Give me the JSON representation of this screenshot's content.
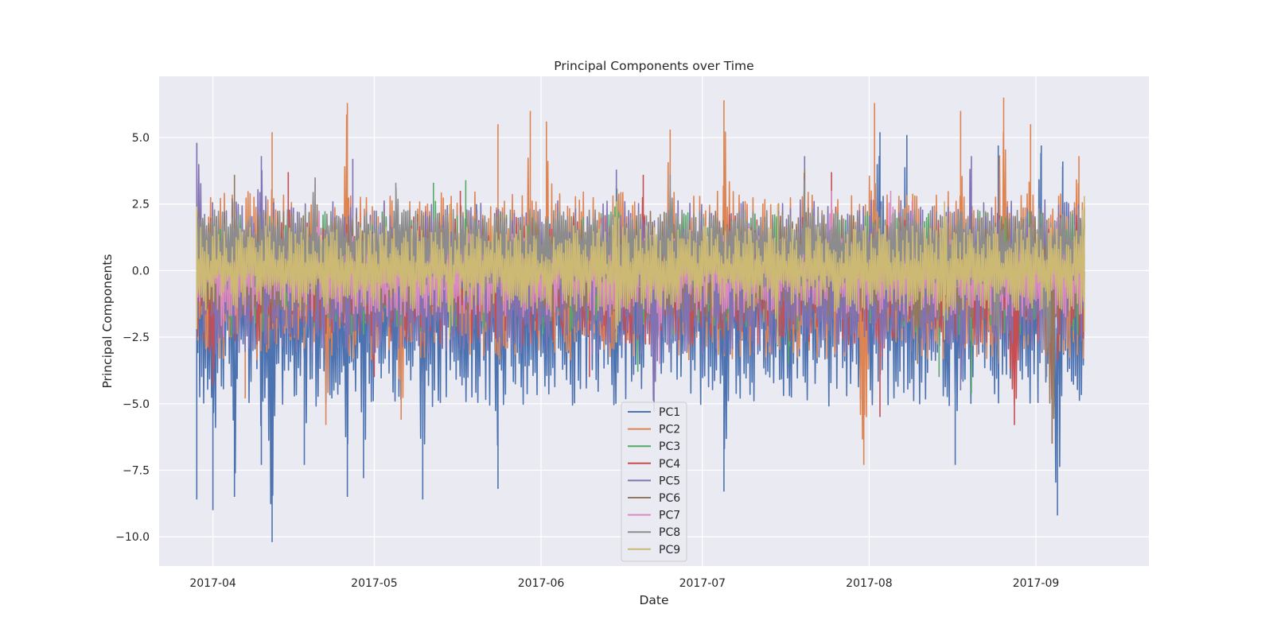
{
  "chart_data": {
    "type": "line",
    "title": "Principal Components over Time",
    "xlabel": "Date",
    "ylabel": "Principal Components",
    "xlim": [
      "2017-03-22",
      "2017-09-22"
    ],
    "ylim": [
      -11.1,
      7.3
    ],
    "grid": true,
    "legend_position": "lower center",
    "x_ticks": [
      "2017-04",
      "2017-05",
      "2017-06",
      "2017-07",
      "2017-08",
      "2017-09"
    ],
    "x_tick_dates": [
      "2017-04-01",
      "2017-05-01",
      "2017-06-01",
      "2017-07-01",
      "2017-08-01",
      "2017-09-01"
    ],
    "y_ticks": [
      5.0,
      2.5,
      0.0,
      -2.5,
      -5.0,
      -7.5,
      -10.0
    ],
    "y_tick_labels": [
      "5.0",
      "2.5",
      "0.0",
      "−2.5",
      "−5.0",
      "−7.5",
      "−10.0"
    ],
    "x_range_data": [
      "2017-03-29",
      "2017-09-10"
    ],
    "series": [
      {
        "name": "PC1",
        "color": "#4c72b0",
        "max_points": [
          [
            "2017-03-29",
            4.8
          ],
          [
            "2017-05-20",
            2.5
          ],
          [
            "2017-08-03",
            5.2
          ],
          [
            "2017-08-08",
            5.1
          ],
          [
            "2017-08-25",
            4.7
          ],
          [
            "2017-09-02",
            4.7
          ],
          [
            "2017-09-06",
            4.1
          ]
        ],
        "min_points": [
          [
            "2017-03-29",
            -8.6
          ],
          [
            "2017-04-01",
            -9.0
          ],
          [
            "2017-04-05",
            -8.5
          ],
          [
            "2017-04-10",
            -7.3
          ],
          [
            "2017-04-12",
            -10.2
          ],
          [
            "2017-04-18",
            -7.3
          ],
          [
            "2017-04-26",
            -8.5
          ],
          [
            "2017-04-29",
            -7.8
          ],
          [
            "2017-05-10",
            -8.6
          ],
          [
            "2017-05-24",
            -8.2
          ],
          [
            "2017-07-05",
            -8.3
          ],
          [
            "2017-08-17",
            -7.3
          ],
          [
            "2017-09-05",
            -9.2
          ]
        ]
      },
      {
        "name": "PC2",
        "color": "#dd8452",
        "max_points": [
          [
            "2017-04-12",
            5.2
          ],
          [
            "2017-04-26",
            6.3
          ],
          [
            "2017-05-24",
            5.5
          ],
          [
            "2017-05-30",
            6.0
          ],
          [
            "2017-06-02",
            5.6
          ],
          [
            "2017-06-25",
            5.3
          ],
          [
            "2017-07-05",
            6.4
          ],
          [
            "2017-08-02",
            6.3
          ],
          [
            "2017-08-18",
            6.0
          ],
          [
            "2017-08-26",
            6.5
          ],
          [
            "2017-08-31",
            5.5
          ],
          [
            "2017-09-09",
            4.3
          ]
        ],
        "min_points": [
          [
            "2017-04-07",
            -4.8
          ],
          [
            "2017-04-22",
            -5.8
          ],
          [
            "2017-05-06",
            -5.6
          ],
          [
            "2017-07-31",
            -7.3
          ]
        ]
      },
      {
        "name": "PC3",
        "color": "#55a868",
        "max_points": [
          [
            "2017-05-12",
            3.3
          ],
          [
            "2017-05-18",
            3.4
          ],
          [
            "2017-06-15",
            3.2
          ]
        ],
        "min_points": [
          [
            "2017-06-19",
            -3.8
          ],
          [
            "2017-07-17",
            -3.5
          ],
          [
            "2017-08-14",
            -4.0
          ],
          [
            "2017-08-20",
            -4.6
          ]
        ]
      },
      {
        "name": "PC4",
        "color": "#c44e52",
        "max_points": [
          [
            "2017-04-15",
            3.7
          ],
          [
            "2017-05-17",
            3.0
          ],
          [
            "2017-06-20",
            3.6
          ],
          [
            "2017-07-25",
            3.7
          ],
          [
            "2017-07-25",
            3.6
          ]
        ],
        "min_points": [
          [
            "2017-04-01",
            -4.3
          ],
          [
            "2017-05-01",
            -4.0
          ],
          [
            "2017-06-10",
            -4.0
          ],
          [
            "2017-08-03",
            -5.5
          ],
          [
            "2017-08-28",
            -5.8
          ],
          [
            "2017-09-04",
            -6.5
          ]
        ]
      },
      {
        "name": "PC5",
        "color": "#8172b3",
        "max_points": [
          [
            "2017-03-29",
            4.8
          ],
          [
            "2017-04-10",
            4.3
          ],
          [
            "2017-04-27",
            4.2
          ],
          [
            "2017-06-15",
            3.8
          ],
          [
            "2017-07-20",
            4.3
          ],
          [
            "2017-08-20",
            4.3
          ]
        ],
        "min_points": [
          [
            "2017-06-22",
            -5.3
          ],
          [
            "2017-08-18",
            -4.5
          ]
        ]
      },
      {
        "name": "PC6",
        "color": "#937860",
        "max_points": [
          [
            "2017-04-05",
            3.6
          ],
          [
            "2017-04-20",
            3.2
          ],
          [
            "2017-07-20",
            3.8
          ]
        ],
        "min_points": [
          [
            "2017-07-05",
            -2.5
          ],
          [
            "2017-08-10",
            -3.5
          ],
          [
            "2017-09-04",
            -6.5
          ]
        ]
      },
      {
        "name": "PC7",
        "color": "#da8bc3",
        "max_points": [
          [
            "2017-04-20",
            3.5
          ],
          [
            "2017-07-25",
            3.0
          ],
          [
            "2017-08-05",
            3.0
          ],
          [
            "2017-08-09",
            2.6
          ],
          [
            "2017-09-05",
            2.0
          ]
        ],
        "min_points": [
          [
            "2017-04-03",
            -2.5
          ],
          [
            "2017-06-23",
            -3.5
          ]
        ]
      },
      {
        "name": "PC8",
        "color": "#8c8c8c",
        "max_points": [
          [
            "2017-04-20",
            3.5
          ],
          [
            "2017-05-05",
            3.3
          ],
          [
            "2017-06-25",
            3.6
          ],
          [
            "2017-07-20",
            3.4
          ]
        ],
        "min_points": [
          [
            "2017-03-30",
            -1.0
          ],
          [
            "2017-08-25",
            -3.5
          ],
          [
            "2017-09-03",
            -4.0
          ]
        ]
      },
      {
        "name": "PC9",
        "color": "#ccb974",
        "max_points": [
          [
            "2017-03-29",
            2.4
          ],
          [
            "2017-05-15",
            2.5
          ],
          [
            "2017-06-15",
            2.6
          ],
          [
            "2017-07-15",
            2.5
          ],
          [
            "2017-08-15",
            2.6
          ],
          [
            "2017-09-10",
            2.8
          ]
        ],
        "min_points": [
          [
            "2017-03-29",
            -2.2
          ],
          [
            "2017-05-15",
            -2.6
          ],
          [
            "2017-06-15",
            -2.7
          ],
          [
            "2017-07-15",
            -2.8
          ],
          [
            "2017-08-15",
            -2.6
          ],
          [
            "2017-09-10",
            -2.3
          ]
        ]
      }
    ]
  }
}
